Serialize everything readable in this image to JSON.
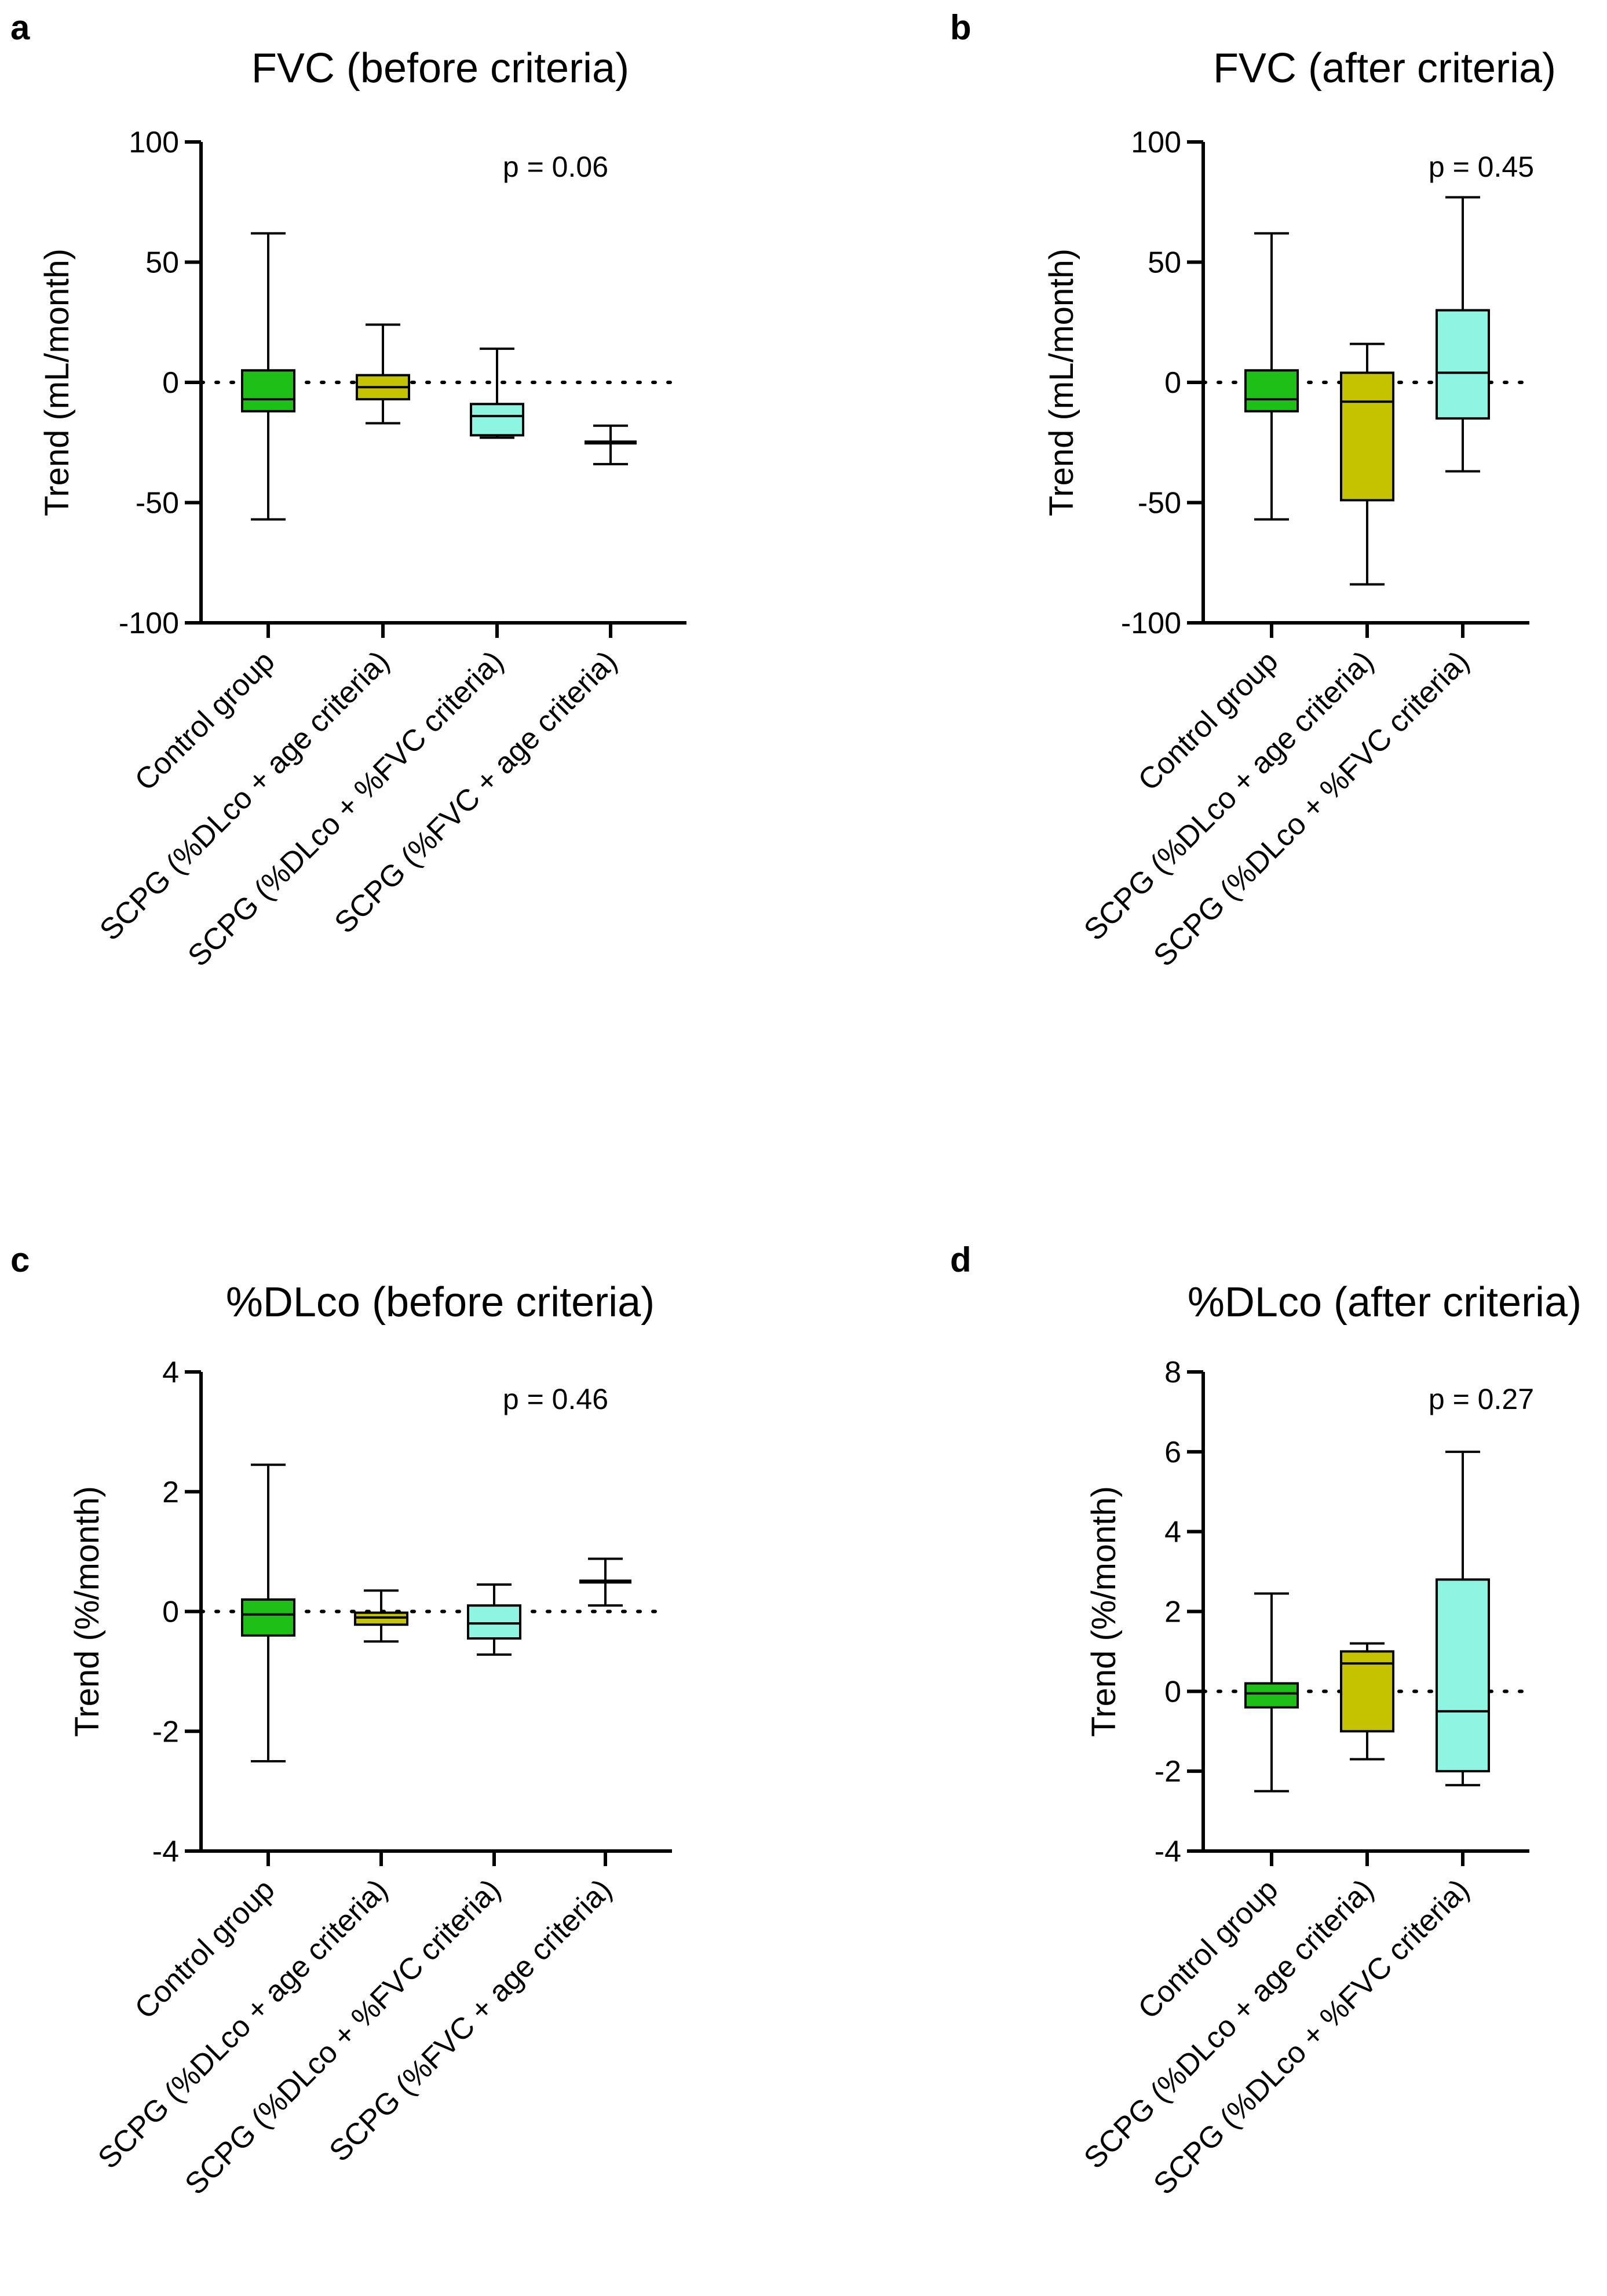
{
  "chart_data": [
    {
      "panel": "a",
      "type": "box",
      "title": "FVC (before criteria)",
      "ylabel": "Trend (mL/month)",
      "ylim": [
        -100,
        100
      ],
      "yticks": [
        100,
        50,
        0,
        -50,
        -100
      ],
      "annotation": "p = 0.06",
      "reference_line": 0,
      "categories": [
        "Control group",
        "SCPG (%DLco + age criteria)",
        "SCPG (%DLco + %FVC criteria)",
        "SCPG (%FVC + age criteria)"
      ],
      "boxes": [
        {
          "min": -57,
          "q1": -12,
          "median": -7,
          "q3": 5,
          "max": 62,
          "color": "#1ebf16"
        },
        {
          "min": -17,
          "q1": -7,
          "median": -2,
          "q3": 3,
          "max": 24,
          "color": "#c5c200"
        },
        {
          "min": -23,
          "q1": -22,
          "median": -14,
          "q3": -9,
          "max": 14,
          "color": "#8ef5e3"
        },
        {
          "min": -34,
          "q1": -25,
          "median": -25,
          "q3": -25,
          "max": -18,
          "color": "#ffffff"
        }
      ]
    },
    {
      "panel": "b",
      "type": "box",
      "title": "FVC (after criteria)",
      "ylabel": "Trend (mL/month)",
      "ylim": [
        -100,
        100
      ],
      "yticks": [
        100,
        50,
        0,
        -50,
        -100
      ],
      "annotation": "p = 0.45",
      "reference_line": 0,
      "categories": [
        "Control group",
        "SCPG (%DLco + age criteria)",
        "SCPG (%DLco + %FVC criteria)"
      ],
      "boxes": [
        {
          "min": -57,
          "q1": -12,
          "median": -7,
          "q3": 5,
          "max": 62,
          "color": "#1ebf16"
        },
        {
          "min": -84,
          "q1": -49,
          "median": -8,
          "q3": 4,
          "max": 16,
          "color": "#c5c200"
        },
        {
          "min": -37,
          "q1": -15,
          "median": 4,
          "q3": 30,
          "max": 77,
          "color": "#8ef5e3"
        }
      ]
    },
    {
      "panel": "c",
      "type": "box",
      "title": "%DLco (before criteria)",
      "ylabel": "Trend (%/month)",
      "ylim": [
        -4,
        4
      ],
      "yticks": [
        4,
        2,
        0,
        -2,
        -4
      ],
      "annotation": "p = 0.46",
      "reference_line": 0,
      "categories": [
        "Control group",
        "SCPG (%DLco + age criteria)",
        "SCPG (%DLco + %FVC criteria)",
        "SCPG (%FVC + age criteria)"
      ],
      "boxes": [
        {
          "min": -2.5,
          "q1": -0.4,
          "median": -0.05,
          "q3": 0.2,
          "max": 2.45,
          "color": "#1ebf16"
        },
        {
          "min": -0.5,
          "q1": -0.22,
          "median": -0.1,
          "q3": -0.02,
          "max": 0.35,
          "color": "#c5c200"
        },
        {
          "min": -0.72,
          "q1": -0.45,
          "median": -0.2,
          "q3": 0.1,
          "max": 0.45,
          "color": "#8ef5e3"
        },
        {
          "min": 0.1,
          "q1": 0.5,
          "median": 0.5,
          "q3": 0.5,
          "max": 0.88,
          "color": "#ffffff"
        }
      ]
    },
    {
      "panel": "d",
      "type": "box",
      "title": "%DLco (after criteria)",
      "ylabel": "Trend (%/month)",
      "ylim": [
        -4,
        8
      ],
      "yticks": [
        8,
        6,
        4,
        2,
        0,
        -2,
        -4
      ],
      "annotation": "p = 0.27",
      "reference_line": 0,
      "categories": [
        "Control group",
        "SCPG (%DLco + age criteria)",
        "SCPG (%DLco + %FVC criteria)"
      ],
      "boxes": [
        {
          "min": -2.5,
          "q1": -0.4,
          "median": -0.05,
          "q3": 0.2,
          "max": 2.45,
          "color": "#1ebf16"
        },
        {
          "min": -1.7,
          "q1": -1.0,
          "median": 0.7,
          "q3": 1.0,
          "max": 1.2,
          "color": "#c5c200"
        },
        {
          "min": -2.35,
          "q1": -2.0,
          "median": -0.5,
          "q3": 2.8,
          "max": 6.0,
          "color": "#8ef5e3"
        }
      ]
    }
  ]
}
